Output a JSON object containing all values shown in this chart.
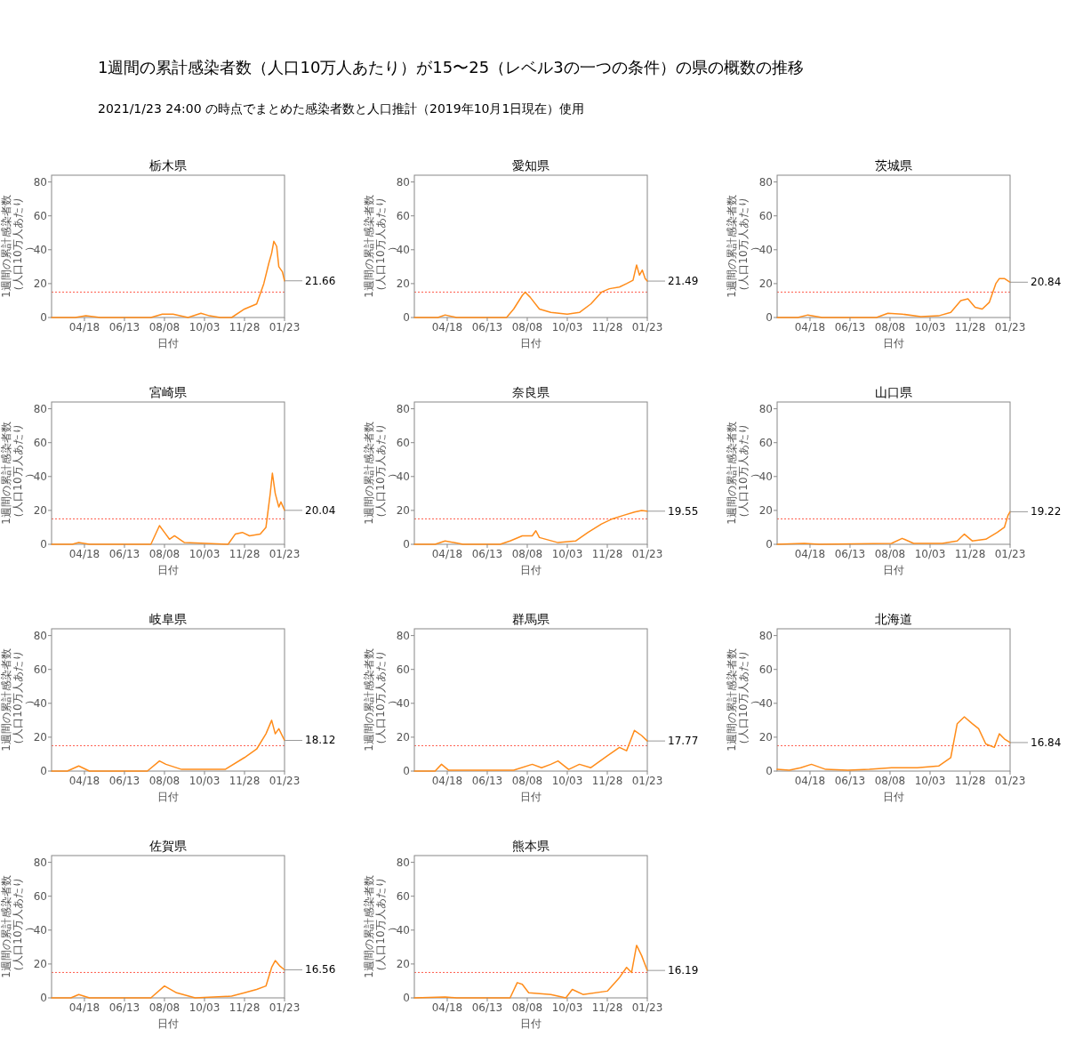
{
  "chart_data": [
    {
      "type": "other",
      "title": "1週間の累計感染者数（人口10万人あたり）が15〜25（レベル3の一つの条件）の県の概数の推移",
      "subtitle": "2021/1/23 24:00 の時点でまとめた感染者数と人口推計（2019年10月1日現在）使用"
    },
    {
      "type": "line",
      "title": "栃木県",
      "xlabel": "日付",
      "ylabel": "1週間の累計感染者数（人口10万人あたり）",
      "xlim": [
        "2020-03-03",
        "2021-01-23"
      ],
      "xticks": [
        {
          "value": "2020-04-18",
          "label": "04/18"
        },
        {
          "value": "2020-06-13",
          "label": "06/13"
        },
        {
          "value": "2020-08-08",
          "label": "08/08"
        },
        {
          "value": "2020-10-03",
          "label": "10/03"
        },
        {
          "value": "2020-11-28",
          "label": "11/28"
        },
        {
          "value": "2021-01-23",
          "label": "01/23"
        }
      ],
      "ylim": [
        0,
        84
      ],
      "yticks": [
        0,
        20,
        40,
        60,
        80
      ],
      "ref_lines": [
        {
          "axis": "y",
          "value": 15,
          "color": "#ff5a4a",
          "line_style": "dotted"
        }
      ],
      "annotations": [
        {
          "text": "21.66",
          "x": "2021-01-23",
          "y": 21.66
        }
      ],
      "series": [
        {
          "color": "#ff8c1a",
          "x": [
            "2020-03-03",
            "2020-04-05",
            "2020-04-20",
            "2020-05-10",
            "2020-07-20",
            "2020-08-05",
            "2020-08-20",
            "2020-09-10",
            "2020-09-28",
            "2020-10-10",
            "2020-10-25",
            "2020-11-10",
            "2020-11-28",
            "2020-12-15",
            "2020-12-25",
            "2021-01-01",
            "2021-01-05",
            "2021-01-08",
            "2021-01-12",
            "2021-01-15",
            "2021-01-20",
            "2021-01-23"
          ],
          "values": [
            0,
            0,
            1,
            0,
            0,
            2,
            2,
            0,
            2.5,
            1,
            0,
            0,
            5,
            8,
            20,
            32,
            38,
            45,
            42,
            30,
            27,
            21.66
          ]
        }
      ]
    },
    {
      "type": "line",
      "title": "愛知県",
      "xlabel": "日付",
      "ylabel": "1週間の累計感染者数（人口10万人あたり）",
      "xlim": [
        "2020-03-03",
        "2021-01-23"
      ],
      "xticks": [
        {
          "value": "2020-04-18",
          "label": "04/18"
        },
        {
          "value": "2020-06-13",
          "label": "06/13"
        },
        {
          "value": "2020-08-08",
          "label": "08/08"
        },
        {
          "value": "2020-10-03",
          "label": "10/03"
        },
        {
          "value": "2020-11-28",
          "label": "11/28"
        },
        {
          "value": "2021-01-23",
          "label": "01/23"
        }
      ],
      "ylim": [
        0,
        84
      ],
      "yticks": [
        0,
        20,
        40,
        60,
        80
      ],
      "ref_lines": [
        {
          "axis": "y",
          "value": 15,
          "color": "#ff5a4a",
          "line_style": "dotted"
        }
      ],
      "annotations": [
        {
          "text": "21.49",
          "x": "2021-01-23",
          "y": 21.49
        }
      ],
      "series": [
        {
          "color": "#ff8c1a",
          "x": [
            "2020-03-03",
            "2020-04-05",
            "2020-04-15",
            "2020-05-01",
            "2020-07-10",
            "2020-07-20",
            "2020-08-01",
            "2020-08-05",
            "2020-08-12",
            "2020-08-25",
            "2020-09-10",
            "2020-10-03",
            "2020-10-20",
            "2020-11-05",
            "2020-11-20",
            "2020-12-01",
            "2020-12-15",
            "2020-12-25",
            "2021-01-03",
            "2021-01-08",
            "2021-01-12",
            "2021-01-16",
            "2021-01-20",
            "2021-01-23"
          ],
          "values": [
            0,
            0,
            1.5,
            0,
            0,
            5,
            13,
            15,
            12,
            5,
            3,
            2,
            3,
            8,
            15,
            17,
            18,
            20,
            22,
            31,
            25,
            28,
            23,
            21.49
          ]
        }
      ]
    },
    {
      "type": "line",
      "title": "茨城県",
      "xlabel": "日付",
      "ylabel": "1週間の累計感染者数（人口10万人あたり）",
      "xlim": [
        "2020-03-03",
        "2021-01-23"
      ],
      "xticks": [
        {
          "value": "2020-04-18",
          "label": "04/18"
        },
        {
          "value": "2020-06-13",
          "label": "06/13"
        },
        {
          "value": "2020-08-08",
          "label": "08/08"
        },
        {
          "value": "2020-10-03",
          "label": "10/03"
        },
        {
          "value": "2020-11-28",
          "label": "11/28"
        },
        {
          "value": "2021-01-23",
          "label": "01/23"
        }
      ],
      "ylim": [
        0,
        84
      ],
      "yticks": [
        0,
        20,
        40,
        60,
        80
      ],
      "ref_lines": [
        {
          "axis": "y",
          "value": 15,
          "color": "#ff5a4a",
          "line_style": "dotted"
        }
      ],
      "annotations": [
        {
          "text": "20.84",
          "x": "2021-01-23",
          "y": 20.84
        }
      ],
      "series": [
        {
          "color": "#ff8c1a",
          "x": [
            "2020-03-03",
            "2020-04-01",
            "2020-04-15",
            "2020-05-05",
            "2020-07-20",
            "2020-08-05",
            "2020-08-25",
            "2020-09-20",
            "2020-10-15",
            "2020-11-01",
            "2020-11-15",
            "2020-11-25",
            "2020-12-05",
            "2020-12-15",
            "2020-12-25",
            "2021-01-03",
            "2021-01-08",
            "2021-01-15",
            "2021-01-23"
          ],
          "values": [
            0,
            0,
            1.5,
            0,
            0,
            2.5,
            2,
            0.5,
            1,
            3,
            10,
            11,
            6,
            5,
            9,
            20,
            23,
            23,
            20.84
          ]
        }
      ]
    },
    {
      "type": "line",
      "title": "宮崎県",
      "xlabel": "日付",
      "ylabel": "1週間の累計感染者数（人口10万人あたり）",
      "xlim": [
        "2020-03-03",
        "2021-01-23"
      ],
      "xticks": [
        {
          "value": "2020-04-18",
          "label": "04/18"
        },
        {
          "value": "2020-06-13",
          "label": "06/13"
        },
        {
          "value": "2020-08-08",
          "label": "08/08"
        },
        {
          "value": "2020-10-03",
          "label": "10/03"
        },
        {
          "value": "2020-11-28",
          "label": "11/28"
        },
        {
          "value": "2021-01-23",
          "label": "01/23"
        }
      ],
      "ylim": [
        0,
        84
      ],
      "yticks": [
        0,
        20,
        40,
        60,
        80
      ],
      "ref_lines": [
        {
          "axis": "y",
          "value": 15,
          "color": "#ff5a4a",
          "line_style": "dotted"
        }
      ],
      "annotations": [
        {
          "text": "20.04",
          "x": "2021-01-23",
          "y": 20.04
        }
      ],
      "series": [
        {
          "color": "#ff8c1a",
          "x": [
            "2020-03-03",
            "2020-04-01",
            "2020-04-10",
            "2020-04-25",
            "2020-07-20",
            "2020-08-01",
            "2020-08-08",
            "2020-08-15",
            "2020-08-22",
            "2020-09-05",
            "2020-11-05",
            "2020-11-15",
            "2020-11-25",
            "2020-12-05",
            "2020-12-20",
            "2020-12-28",
            "2021-01-03",
            "2021-01-06",
            "2021-01-10",
            "2021-01-15",
            "2021-01-18",
            "2021-01-23"
          ],
          "values": [
            0,
            0,
            1,
            0,
            0,
            11,
            7,
            3,
            5,
            1,
            0,
            6,
            7,
            5,
            6,
            10,
            30,
            42,
            30,
            22,
            25,
            20.04
          ]
        }
      ]
    },
    {
      "type": "line",
      "title": "奈良県",
      "xlabel": "日付",
      "ylabel": "1週間の累計感染者数（人口10万人あたり）",
      "xlim": [
        "2020-03-03",
        "2021-01-23"
      ],
      "xticks": [
        {
          "value": "2020-04-18",
          "label": "04/18"
        },
        {
          "value": "2020-06-13",
          "label": "06/13"
        },
        {
          "value": "2020-08-08",
          "label": "08/08"
        },
        {
          "value": "2020-10-03",
          "label": "10/03"
        },
        {
          "value": "2020-11-28",
          "label": "11/28"
        },
        {
          "value": "2021-01-23",
          "label": "01/23"
        }
      ],
      "ylim": [
        0,
        84
      ],
      "yticks": [
        0,
        20,
        40,
        60,
        80
      ],
      "ref_lines": [
        {
          "axis": "y",
          "value": 15,
          "color": "#ff5a4a",
          "line_style": "dotted"
        }
      ],
      "annotations": [
        {
          "text": "19.55",
          "x": "2021-01-23",
          "y": 19.55
        }
      ],
      "series": [
        {
          "color": "#ff8c1a",
          "x": [
            "2020-03-03",
            "2020-04-01",
            "2020-04-15",
            "2020-05-10",
            "2020-07-01",
            "2020-07-15",
            "2020-08-01",
            "2020-08-15",
            "2020-08-20",
            "2020-08-25",
            "2020-09-20",
            "2020-10-15",
            "2020-11-01",
            "2020-11-20",
            "2020-12-05",
            "2020-12-20",
            "2021-01-05",
            "2021-01-15",
            "2021-01-23"
          ],
          "values": [
            0,
            0,
            2,
            0,
            0,
            2,
            5,
            5,
            8,
            4,
            1,
            2,
            7,
            12,
            15,
            17,
            19,
            20,
            19.55
          ]
        }
      ]
    },
    {
      "type": "line",
      "title": "山口県",
      "xlabel": "日付",
      "ylabel": "1週間の累計感染者数（人口10万人あたり）",
      "xlim": [
        "2020-03-03",
        "2021-01-23"
      ],
      "xticks": [
        {
          "value": "2020-04-18",
          "label": "04/18"
        },
        {
          "value": "2020-06-13",
          "label": "06/13"
        },
        {
          "value": "2020-08-08",
          "label": "08/08"
        },
        {
          "value": "2020-10-03",
          "label": "10/03"
        },
        {
          "value": "2020-11-28",
          "label": "11/28"
        },
        {
          "value": "2021-01-23",
          "label": "01/23"
        }
      ],
      "ylim": [
        0,
        84
      ],
      "yticks": [
        0,
        20,
        40,
        60,
        80
      ],
      "ref_lines": [
        {
          "axis": "y",
          "value": 15,
          "color": "#ff5a4a",
          "line_style": "dotted"
        }
      ],
      "annotations": [
        {
          "text": "19.22",
          "x": "2021-01-23",
          "y": 19.22
        }
      ],
      "series": [
        {
          "color": "#ff8c1a",
          "x": [
            "2020-03-03",
            "2020-04-10",
            "2020-05-01",
            "2020-08-10",
            "2020-08-25",
            "2020-09-10",
            "2020-10-20",
            "2020-11-10",
            "2020-11-20",
            "2020-12-01",
            "2020-12-20",
            "2021-01-05",
            "2021-01-15",
            "2021-01-20",
            "2021-01-23"
          ],
          "values": [
            0,
            0.5,
            0,
            0.5,
            3.5,
            0.5,
            0.5,
            2,
            6,
            2,
            3,
            7,
            10,
            17,
            19.22
          ]
        }
      ]
    },
    {
      "type": "line",
      "title": "岐阜県",
      "xlabel": "日付",
      "ylabel": "1週間の累計感染者数（人口10万人あたり）",
      "xlim": [
        "2020-03-03",
        "2021-01-23"
      ],
      "xticks": [
        {
          "value": "2020-04-18",
          "label": "04/18"
        },
        {
          "value": "2020-06-13",
          "label": "06/13"
        },
        {
          "value": "2020-08-08",
          "label": "08/08"
        },
        {
          "value": "2020-10-03",
          "label": "10/03"
        },
        {
          "value": "2020-11-28",
          "label": "11/28"
        },
        {
          "value": "2021-01-23",
          "label": "01/23"
        }
      ],
      "ylim": [
        0,
        84
      ],
      "yticks": [
        0,
        20,
        40,
        60,
        80
      ],
      "ref_lines": [
        {
          "axis": "y",
          "value": 15,
          "color": "#ff5a4a",
          "line_style": "dotted"
        }
      ],
      "annotations": [
        {
          "text": "18.12",
          "x": "2021-01-23",
          "y": 18.12
        }
      ],
      "series": [
        {
          "color": "#ff8c1a",
          "x": [
            "2020-03-03",
            "2020-03-25",
            "2020-04-10",
            "2020-04-25",
            "2020-07-15",
            "2020-08-01",
            "2020-08-10",
            "2020-09-01",
            "2020-10-01",
            "2020-11-01",
            "2020-11-28",
            "2020-12-15",
            "2020-12-28",
            "2021-01-05",
            "2021-01-10",
            "2021-01-15",
            "2021-01-23"
          ],
          "values": [
            0,
            0,
            3,
            0,
            0,
            6,
            4,
            1,
            1,
            1,
            8,
            13,
            22,
            30,
            22,
            25,
            18.12
          ]
        }
      ]
    },
    {
      "type": "line",
      "title": "群馬県",
      "xlabel": "日付",
      "ylabel": "1週間の累計感染者数（人口10万人あたり）",
      "xlim": [
        "2020-03-03",
        "2021-01-23"
      ],
      "xticks": [
        {
          "value": "2020-04-18",
          "label": "04/18"
        },
        {
          "value": "2020-06-13",
          "label": "06/13"
        },
        {
          "value": "2020-08-08",
          "label": "08/08"
        },
        {
          "value": "2020-10-03",
          "label": "10/03"
        },
        {
          "value": "2020-11-28",
          "label": "11/28"
        },
        {
          "value": "2021-01-23",
          "label": "01/23"
        }
      ],
      "ylim": [
        0,
        84
      ],
      "yticks": [
        0,
        20,
        40,
        60,
        80
      ],
      "ref_lines": [
        {
          "axis": "y",
          "value": 15,
          "color": "#ff5a4a",
          "line_style": "dotted"
        }
      ],
      "annotations": [
        {
          "text": "17.77",
          "x": "2021-01-23",
          "y": 17.77
        }
      ],
      "series": [
        {
          "color": "#ff8c1a",
          "x": [
            "2020-03-03",
            "2020-04-01",
            "2020-04-10",
            "2020-04-20",
            "2020-07-20",
            "2020-08-15",
            "2020-08-28",
            "2020-09-10",
            "2020-09-20",
            "2020-10-05",
            "2020-10-20",
            "2020-11-05",
            "2020-11-28",
            "2020-12-15",
            "2020-12-25",
            "2021-01-05",
            "2021-01-15",
            "2021-01-23"
          ],
          "values": [
            0,
            0,
            4,
            0.5,
            0.5,
            4,
            2,
            4,
            6,
            1,
            4,
            2,
            9,
            14,
            12,
            24,
            21,
            17.77
          ]
        }
      ]
    },
    {
      "type": "line",
      "title": "北海道",
      "xlabel": "日付",
      "ylabel": "1週間の累計感染者数（人口10万人あたり）",
      "xlim": [
        "2020-03-03",
        "2021-01-23"
      ],
      "xticks": [
        {
          "value": "2020-04-18",
          "label": "04/18"
        },
        {
          "value": "2020-06-13",
          "label": "06/13"
        },
        {
          "value": "2020-08-08",
          "label": "08/08"
        },
        {
          "value": "2020-10-03",
          "label": "10/03"
        },
        {
          "value": "2020-11-28",
          "label": "11/28"
        },
        {
          "value": "2021-01-23",
          "label": "01/23"
        }
      ],
      "ylim": [
        0,
        84
      ],
      "yticks": [
        0,
        20,
        40,
        60,
        80
      ],
      "ref_lines": [
        {
          "axis": "y",
          "value": 15,
          "color": "#ff5a4a",
          "line_style": "dotted"
        }
      ],
      "annotations": [
        {
          "text": "16.84",
          "x": "2021-01-23",
          "y": 16.84
        }
      ],
      "series": [
        {
          "color": "#ff8c1a",
          "x": [
            "2020-03-03",
            "2020-03-20",
            "2020-04-05",
            "2020-04-20",
            "2020-05-10",
            "2020-06-10",
            "2020-07-10",
            "2020-08-10",
            "2020-09-15",
            "2020-10-15",
            "2020-11-01",
            "2020-11-10",
            "2020-11-20",
            "2020-12-01",
            "2020-12-10",
            "2020-12-20",
            "2021-01-01",
            "2021-01-08",
            "2021-01-15",
            "2021-01-23"
          ],
          "values": [
            1,
            0.5,
            2,
            4,
            1,
            0.5,
            1,
            2,
            2,
            3,
            8,
            28,
            32,
            28,
            25,
            16,
            14,
            22,
            19,
            16.84
          ]
        }
      ]
    },
    {
      "type": "line",
      "title": "佐賀県",
      "xlabel": "日付",
      "ylabel": "1週間の累計感染者数（人口10万人あたり）",
      "xlim": [
        "2020-03-03",
        "2021-01-23"
      ],
      "xticks": [
        {
          "value": "2020-04-18",
          "label": "04/18"
        },
        {
          "value": "2020-06-13",
          "label": "06/13"
        },
        {
          "value": "2020-08-08",
          "label": "08/08"
        },
        {
          "value": "2020-10-03",
          "label": "10/03"
        },
        {
          "value": "2020-11-28",
          "label": "11/28"
        },
        {
          "value": "2021-01-23",
          "label": "01/23"
        }
      ],
      "ylim": [
        0,
        84
      ],
      "yticks": [
        0,
        20,
        40,
        60,
        80
      ],
      "ref_lines": [
        {
          "axis": "y",
          "value": 15,
          "color": "#ff5a4a",
          "line_style": "dotted"
        }
      ],
      "annotations": [
        {
          "text": "16.56",
          "x": "2021-01-23",
          "y": 16.56
        }
      ],
      "series": [
        {
          "color": "#ff8c1a",
          "x": [
            "2020-03-03",
            "2020-03-30",
            "2020-04-10",
            "2020-04-25",
            "2020-07-20",
            "2020-08-08",
            "2020-08-25",
            "2020-09-20",
            "2020-11-10",
            "2020-11-28",
            "2020-12-15",
            "2020-12-28",
            "2021-01-05",
            "2021-01-10",
            "2021-01-16",
            "2021-01-23"
          ],
          "values": [
            0,
            0,
            2,
            0,
            0,
            7,
            3,
            0,
            1,
            3,
            5,
            7,
            18,
            22,
            19,
            16.56
          ]
        }
      ]
    },
    {
      "type": "line",
      "title": "熊本県",
      "xlabel": "日付",
      "ylabel": "1週間の累計感染者数（人口10万人あたり）",
      "xlim": [
        "2020-03-03",
        "2021-01-23"
      ],
      "xticks": [
        {
          "value": "2020-04-18",
          "label": "04/18"
        },
        {
          "value": "2020-06-13",
          "label": "06/13"
        },
        {
          "value": "2020-08-08",
          "label": "08/08"
        },
        {
          "value": "2020-10-03",
          "label": "10/03"
        },
        {
          "value": "2020-11-28",
          "label": "11/28"
        },
        {
          "value": "2021-01-23",
          "label": "01/23"
        }
      ],
      "ylim": [
        0,
        84
      ],
      "yticks": [
        0,
        20,
        40,
        60,
        80
      ],
      "ref_lines": [
        {
          "axis": "y",
          "value": 15,
          "color": "#ff5a4a",
          "line_style": "dotted"
        }
      ],
      "annotations": [
        {
          "text": "16.19",
          "x": "2021-01-23",
          "y": 16.19
        }
      ],
      "series": [
        {
          "color": "#ff8c1a",
          "x": [
            "2020-03-03",
            "2020-04-15",
            "2020-05-01",
            "2020-07-15",
            "2020-07-25",
            "2020-08-01",
            "2020-08-10",
            "2020-09-10",
            "2020-10-01",
            "2020-10-10",
            "2020-10-25",
            "2020-11-28",
            "2020-12-15",
            "2020-12-25",
            "2021-01-01",
            "2021-01-08",
            "2021-01-15",
            "2021-01-23"
          ],
          "values": [
            0,
            0.5,
            0,
            0,
            9,
            8,
            3,
            2,
            0,
            5,
            2,
            4,
            12,
            18,
            15,
            31,
            25,
            16.19
          ]
        }
      ]
    }
  ]
}
